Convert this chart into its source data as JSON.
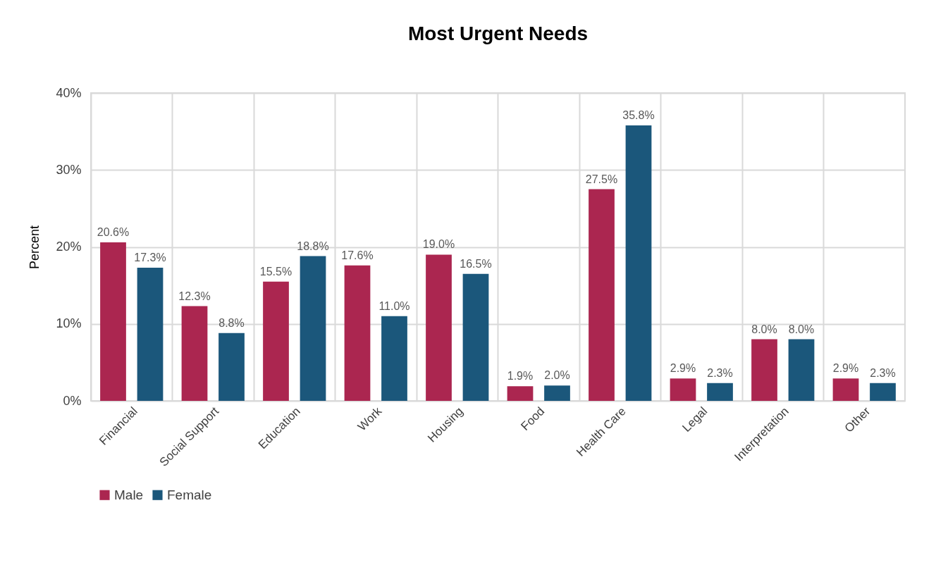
{
  "chart_data": {
    "type": "bar",
    "title": "Most Urgent Needs",
    "ylabel": "Percent",
    "categories": [
      "Financial",
      "Social Support",
      "Education",
      "Work",
      "Housing",
      "Food",
      "Health Care",
      "Legal",
      "Interpretation",
      "Other"
    ],
    "series": [
      {
        "name": "Male",
        "color": "#ab2650",
        "values": [
          20.6,
          12.3,
          15.5,
          17.6,
          19.0,
          1.9,
          27.5,
          2.9,
          8.0,
          2.9
        ],
        "value_labels": [
          "20.6%",
          "12.3%",
          "15.5%",
          "17.6%",
          "19.0%",
          "1.9%",
          "27.5%",
          "2.9%",
          "8.0%",
          "2.9%"
        ]
      },
      {
        "name": "Female",
        "color": "#1b577b",
        "values": [
          17.3,
          8.8,
          18.8,
          11.0,
          16.5,
          2.0,
          35.8,
          2.3,
          8.0,
          2.3
        ],
        "value_labels": [
          "17.3%",
          "8.8%",
          "18.8%",
          "11.0%",
          "16.5%",
          "2.0%",
          "35.8%",
          "2.3%",
          "8.0%",
          "2.3%"
        ]
      }
    ],
    "ylim": [
      0,
      40
    ],
    "yticks": [
      {
        "value": 0,
        "label": "0%"
      },
      {
        "value": 10,
        "label": "10%"
      },
      {
        "value": 20,
        "label": "20%"
      },
      {
        "value": 30,
        "label": "30%"
      },
      {
        "value": 40,
        "label": "40%"
      }
    ],
    "grid": true,
    "legend": "bottom"
  }
}
